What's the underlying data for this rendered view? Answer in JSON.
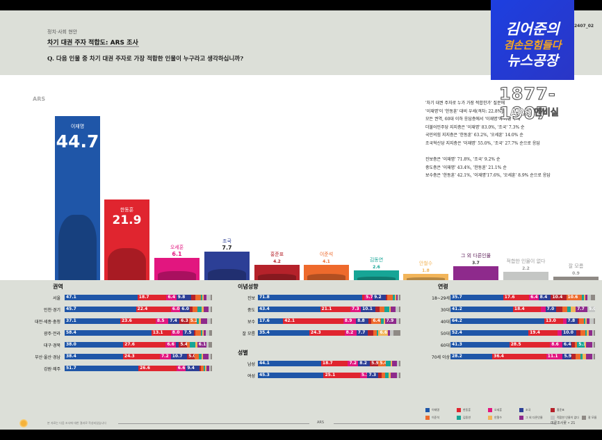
{
  "header": {
    "section": "정치·사회 현안",
    "title": "차기 대권 주자 적합도: ARS 조사",
    "question": "Q. 다음 인물 중 차기 대권 주자로 가장 적합한 인물이 누구라고 생각하십니까?",
    "page_code": "2407_02"
  },
  "overlay": {
    "logo_line1": "김어준의",
    "logo_line2": "겸손은힘들다",
    "logo_line3": "뉴스공장",
    "stamp_years": "1877-1907",
    "stamp_sub": "ARS 멘비실"
  },
  "chart_label": "ARS",
  "summary": {
    "lines": [
      "'차기 대권 주자로 누가 가장 적합한가' 질문에",
      "'이재명'이 '한동훈' 대비 우세(격차: 22.8%p)",
      "모든 권역, 60대 이하 응답층에서 '이재명'이 가장 우세",
      "더불어민주당 지지층은 '이재명' 83.0%, '조국' 7.3% 순",
      "국민의힘 지지층은 '한동훈' 63.2%, '오세훈' 14.0% 순",
      "조국혁신당 지지층은 '이재명' 55.0%, '조국' 27.7% 순으로 응답"
    ],
    "lines2": [
      "진보층은 '이재명' 71.8%, '조국' 9.2% 순",
      "중도층은 '이재명' 43.4%, '한동훈' 21.1% 순",
      "보수층은 '한동훈' 42.1%, '이재명'17.6%, '오세훈' 8.9% 순으로 응답"
    ]
  },
  "colors": {
    "이재명": "#1f56a8",
    "한동훈": "#e0252f",
    "오세훈": "#e2167f",
    "조국": "#2c3f96",
    "홍준표": "#b5222a",
    "이준석": "#ee6a2c",
    "김동연": "#16a596",
    "안철수": "#f2b55a",
    "그 외 다른인물": "#8e2a8c",
    "적합한 인물이 없다": "#c4c6c4",
    "잘 모름": "#8f8a85"
  },
  "chart_data": [
    {
      "type": "bar",
      "title": "차기 대권 주자 적합도: ARS 조사",
      "categories": [
        "이재명",
        "한동훈",
        "오세훈",
        "조국",
        "홍준표",
        "이준석",
        "김동연",
        "안철수",
        "그 외 다른인물",
        "적합한 인물이 없다",
        "잘 모름"
      ],
      "values": [
        44.7,
        21.9,
        6.1,
        7.7,
        4.2,
        4.1,
        2.6,
        1.8,
        3.7,
        2.2,
        0.9
      ],
      "values_text": [
        "44.7",
        "21.9",
        "6.1",
        "7.7",
        "4.2",
        "4.1",
        "2.6",
        "1.8",
        "3.7",
        "2.2",
        "0.9"
      ],
      "ylabel": "%",
      "xlabel": ""
    },
    {
      "type": "bar",
      "stacked": true,
      "orientation": "horizontal",
      "title": "권역",
      "categories": [
        "서울",
        "인천·경기",
        "대전·세종·충청",
        "광주·전라",
        "대구·경북",
        "부산·울산·경남",
        "강원·제주"
      ],
      "series_order": [
        "이재명",
        "한동훈",
        "오세훈",
        "조국",
        "홍준표",
        "이준석",
        "김동연",
        "안철수",
        "그 외 다른인물",
        "적합한 인물이 없다",
        "잘 모름"
      ],
      "rows": [
        [
          47.1,
          18.7,
          6.4,
          9.8,
          2.5,
          3.5,
          0.8,
          1.0,
          2.0,
          2.5,
          0.5
        ],
        [
          45.7,
          22.4,
          6.0,
          6.0,
          2.0,
          3.0,
          2.5,
          1.5,
          3.0,
          1.5,
          0.4
        ],
        [
          37.1,
          23.6,
          8.5,
          7.4,
          6.3,
          5.2,
          1.5,
          1.3,
          4.0,
          2.5,
          0.5
        ],
        [
          58.4,
          13.1,
          8.0,
          7.5,
          1.2,
          3.5,
          1.0,
          1.0,
          1.5,
          2.0,
          2.0
        ],
        [
          38.0,
          27.6,
          6.6,
          2.0,
          5.4,
          1.5,
          4.0,
          1.0,
          6.1,
          1.5,
          2.0
        ],
        [
          38.4,
          24.3,
          7.2,
          10.7,
          5.0,
          2.5,
          2.0,
          1.0,
          3.5,
          1.5,
          0.4
        ],
        [
          51.7,
          26.6,
          6.6,
          9.4,
          1.0,
          2.0,
          0.5,
          0.5,
          2.0,
          0.5,
          0.3
        ]
      ],
      "labels": [
        [
          "47.1",
          "18.7",
          "6.4",
          "9.8",
          "",
          "",
          "",
          "",
          "",
          "",
          ""
        ],
        [
          "45.7",
          "22.4",
          "6.0",
          "6.0",
          "",
          "",
          "",
          "",
          "",
          "",
          ""
        ],
        [
          "37.1",
          "23.6",
          "8.5",
          "7.4",
          "6.3",
          "5.2",
          "",
          "",
          "",
          "",
          ""
        ],
        [
          "58.4",
          "13.1",
          "8.0",
          "7.5",
          "",
          "",
          "",
          "",
          "",
          "",
          ""
        ],
        [
          "38.0",
          "27.6",
          "6.6",
          "",
          "5.4",
          "",
          "",
          "",
          "6.1",
          "",
          ""
        ],
        [
          "38.4",
          "24.3",
          "7.2",
          "10.7",
          "5.0",
          "",
          "",
          "",
          "",
          "",
          ""
        ],
        [
          "51.7",
          "26.6",
          "6.6",
          "9.4",
          "",
          "",
          "",
          "",
          "",
          "",
          ""
        ]
      ]
    },
    {
      "type": "bar",
      "stacked": true,
      "orientation": "horizontal",
      "title": "이념성향",
      "categories": [
        "진보",
        "중도",
        "보수",
        "잘 모름"
      ],
      "rows": [
        [
          71.8,
          1.5,
          5.7,
          9.2,
          0.5,
          3.5,
          1.5,
          0.5,
          1.0,
          1.0,
          0.5
        ],
        [
          43.4,
          21.1,
          7.3,
          10.1,
          3.0,
          3.5,
          3.0,
          0.5,
          3.5,
          2.5,
          0.5
        ],
        [
          17.6,
          42.1,
          8.9,
          8.8,
          2.0,
          6.4,
          2.0,
          0.5,
          7.9,
          2.0,
          0.5
        ],
        [
          35.4,
          24.3,
          8.2,
          7.7,
          4.0,
          2.5,
          0.5,
          6.6,
          1.5,
          2.0,
          5.0
        ]
      ],
      "labels": [
        [
          "71.8",
          "",
          "5.7",
          "9.2",
          "",
          "",
          "",
          "",
          "",
          "",
          ""
        ],
        [
          "43.4",
          "21.1",
          "7.3",
          "10.1",
          "",
          "",
          "",
          "",
          "",
          "",
          ""
        ],
        [
          "17.6",
          "42.1",
          "8.9",
          "8.8",
          "",
          "6.4",
          "",
          "",
          "7.9",
          "",
          ""
        ],
        [
          "35.4",
          "24.3",
          "8.2",
          "7.7",
          "",
          "",
          "",
          "6.6",
          "",
          "",
          ""
        ]
      ]
    },
    {
      "type": "bar",
      "stacked": true,
      "orientation": "horizontal",
      "title": "성별",
      "categories": [
        "남성",
        "여성"
      ],
      "rows": [
        [
          44.1,
          18.7,
          7.2,
          8.2,
          5.9,
          5.4,
          3.0,
          1.0,
          3.5,
          1.5,
          0.5
        ],
        [
          45.3,
          25.1,
          5.1,
          7.3,
          2.5,
          2.5,
          2.5,
          1.5,
          4.0,
          1.5,
          1.0
        ]
      ],
      "labels": [
        [
          "44.1",
          "18.7",
          "7.2",
          "8.2",
          "5.9",
          "5.4",
          "",
          "",
          "",
          "",
          ""
        ],
        [
          "45.3",
          "25.1",
          "5.1",
          "7.3",
          "",
          "",
          "",
          "",
          "",
          "",
          ""
        ]
      ]
    },
    {
      "type": "bar",
      "stacked": true,
      "orientation": "horizontal",
      "title": "연령",
      "categories": [
        "18~29세",
        "30대",
        "40대",
        "50대",
        "60대",
        "70세 이상"
      ],
      "rows": [
        [
          35.7,
          17.6,
          6.4,
          8.4,
          10.4,
          10.6,
          1.5,
          0.5,
          1.5,
          2.0,
          3.0
        ],
        [
          41.2,
          18.4,
          3.0,
          7.0,
          4.0,
          3.5,
          2.0,
          3.5,
          7.7,
          5.0,
          0.0
        ],
        [
          64.2,
          13.0,
          2.0,
          7.8,
          1.0,
          3.5,
          0.5,
          0.5,
          1.5,
          3.0,
          1.0
        ],
        [
          52.4,
          19.4,
          3.0,
          10.0,
          2.5,
          3.5,
          1.0,
          1.0,
          2.5,
          0.5,
          0.5
        ],
        [
          41.3,
          28.5,
          8.6,
          6.4,
          2.5,
          1.5,
          5.1,
          0.5,
          4.5,
          0.5,
          0.5
        ],
        [
          28.2,
          36.4,
          11.1,
          5.9,
          3.0,
          3.0,
          1.5,
          2.5,
          4.0,
          1.0,
          0.5
        ]
      ],
      "labels": [
        [
          "35.7",
          "17.6",
          "6.4",
          "8.4",
          "10.4",
          "10.6",
          "",
          "",
          "",
          "",
          ""
        ],
        [
          "41.2",
          "18.4",
          "",
          "7.0",
          "",
          "",
          "",
          "",
          "7.7",
          "5.0",
          ""
        ],
        [
          "64.2",
          "13.0",
          "",
          "7.8",
          "",
          "",
          "",
          "",
          "",
          "",
          ""
        ],
        [
          "52.4",
          "19.4",
          "",
          "10.0",
          "",
          "",
          "",
          "",
          "",
          "",
          ""
        ],
        [
          "41.3",
          "28.5",
          "8.6",
          "6.4",
          "",
          "",
          "5.1",
          "",
          "",
          "",
          ""
        ],
        [
          "28.2",
          "36.4",
          "11.1",
          "5.9",
          "",
          "",
          "",
          "",
          "",
          "",
          ""
        ]
      ]
    }
  ],
  "legend": [
    "이재명",
    "한동훈",
    "오세훈",
    "조국",
    "홍준표",
    "이준석",
    "김동연",
    "안철수",
    "그 외 다른인물",
    "적합한 인물이 없다",
    "잘 모름"
  ],
  "footer": {
    "note": "본 자료는 다음 조사에 대한 결과로 작성되었습니다",
    "center": "ARS",
    "right": "여론조사꽃 • 21"
  }
}
